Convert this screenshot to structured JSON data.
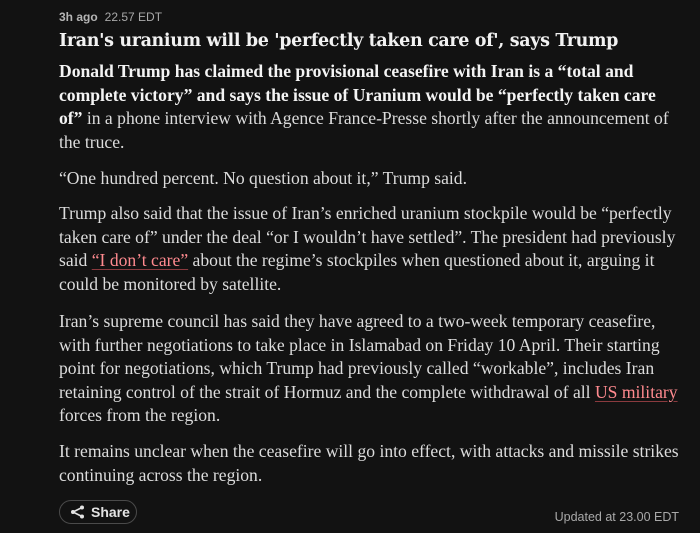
{
  "post": {
    "time_ago": "3h ago",
    "timestamp": "22.57 EDT",
    "headline": "Iran's uranium will be 'perfectly taken care of', says Trump",
    "p1": {
      "bold": "Donald Trump has claimed the provisional ceasefire with Iran is a “total and complete victory” and says the issue of Uranium would be “perfectly taken care of”",
      "rest": " in a phone interview with Agence France-Presse shortly after the announcement of the truce."
    },
    "p2": "“One hundred percent. No question about it,” Trump said.",
    "p3": {
      "before": "Trump also said that the issue of Iran’s enriched uranium stockpile would be “perfectly taken care of” under the deal “or I wouldn’t have settled”. The president had previously said ",
      "link": "“I don’t care”",
      "after": " about the regime’s stockpiles when questioned about it, arguing it could be monitored by satellite."
    },
    "p4": {
      "before": "Iran’s supreme council has said they have agreed to a two-week temporary ceasefire, with further negotiations to take place in Islamabad on Friday 10 April. Their starting point for negotiations, which Trump had previously called “workable”, includes Iran retaining control of the strait of Hormuz and the complete withdrawal of all ",
      "link": "US military",
      "after": " forces from the region."
    },
    "p5": "It remains unclear when the ceasefire will go into effect, with attacks and missile strikes continuing across the region.",
    "share_label": "Share",
    "updated": "Updated at 23.00 EDT"
  },
  "icons": {
    "share": "share-icon"
  },
  "colors": {
    "background": "#121212",
    "body_text": "#dcdcdc",
    "headline": "#f2f2f2",
    "link": "#ff8a8f",
    "meta": "#a9a9a9"
  }
}
